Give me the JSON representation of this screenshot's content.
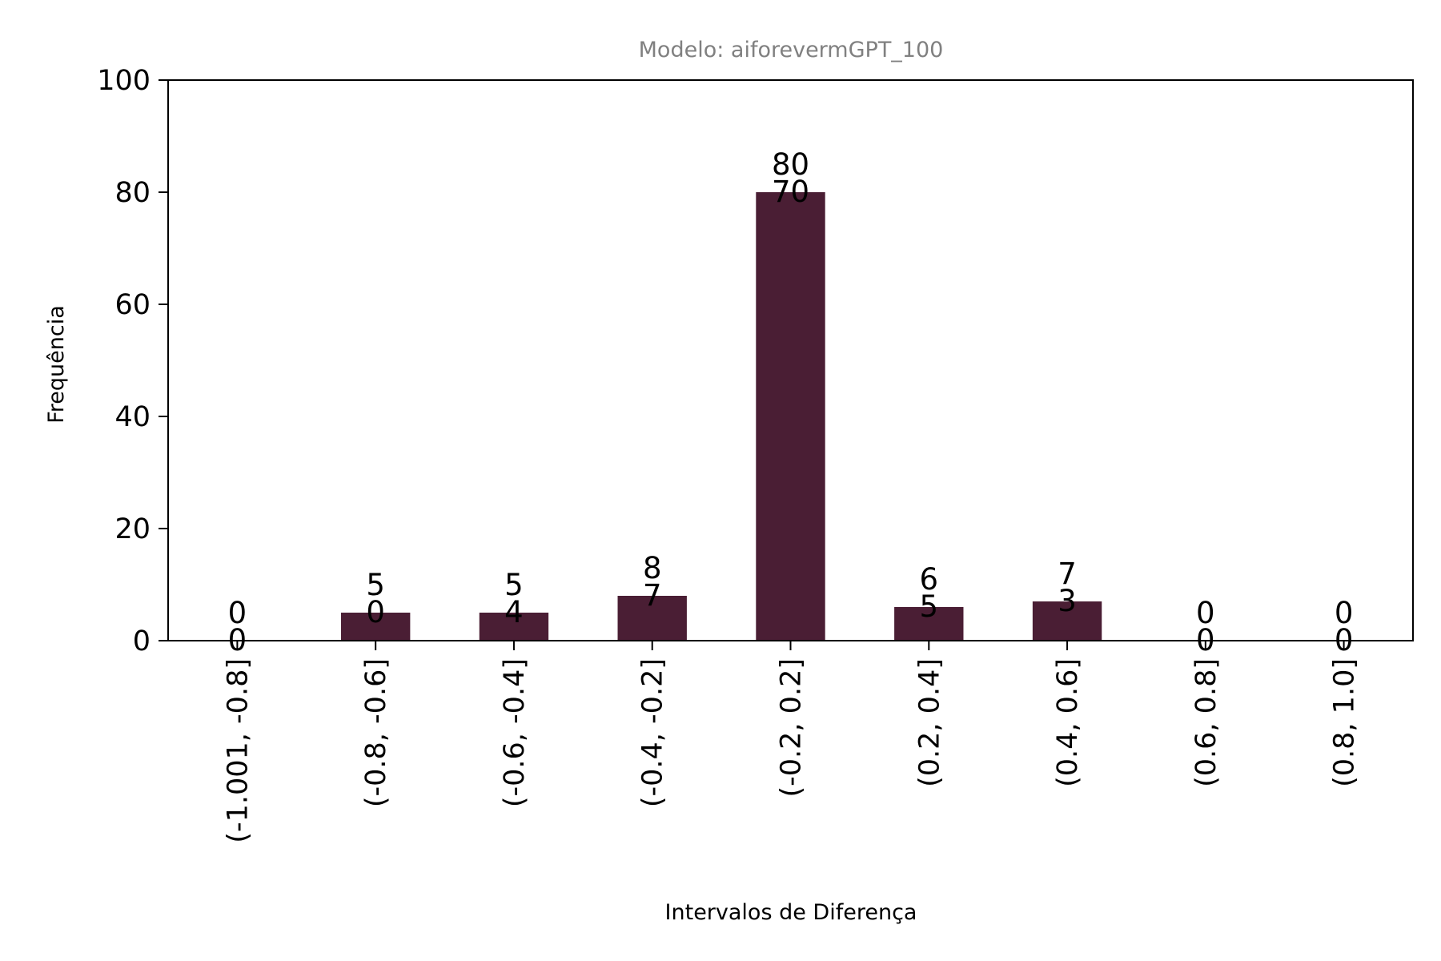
{
  "chart_data": {
    "type": "bar",
    "title": "Modelo: aiforevermGPT_100",
    "xlabel": "Intervalos de Diferença",
    "ylabel": "Frequência",
    "ylim": [
      0,
      100
    ],
    "yticks": [
      0,
      20,
      40,
      60,
      80,
      100
    ],
    "categories": [
      "(-1.001, -0.8]",
      "(-0.8, -0.6]",
      "(-0.6, -0.4]",
      "(-0.4, -0.2]",
      "(-0.2, 0.2]",
      "(0.2, 0.4]",
      "(0.4, 0.6]",
      "(0.6, 0.8]",
      "(0.8, 1.0]"
    ],
    "values": [
      0,
      5,
      5,
      8,
      80,
      6,
      7,
      0,
      0
    ],
    "secondary_labels": [
      "0",
      "0",
      "4",
      "7",
      "70",
      "5",
      "3",
      "0",
      "0"
    ],
    "grid": false,
    "legend": "none",
    "colors": {
      "bar": "#4a1e34",
      "title": "#808080",
      "axis": "#000000"
    }
  }
}
